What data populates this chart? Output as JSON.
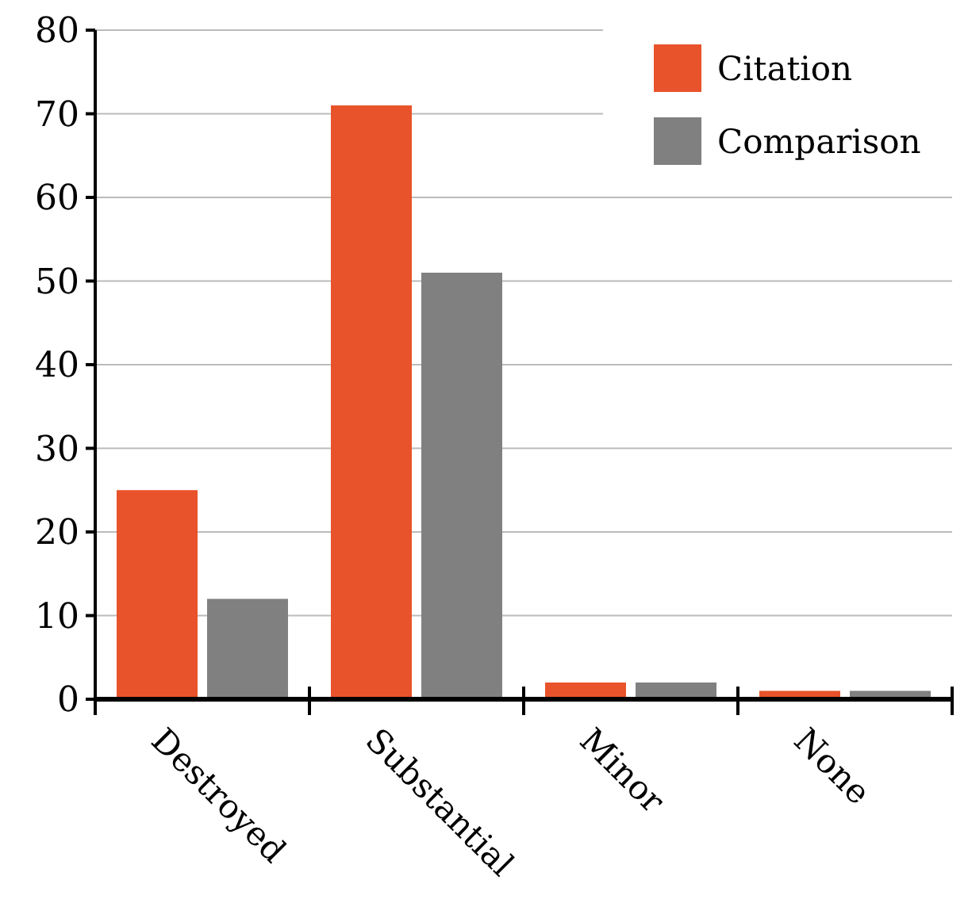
{
  "chart_data": {
    "type": "bar",
    "categories": [
      "Destroyed",
      "Substantial",
      "Minor",
      "None"
    ],
    "series": [
      {
        "name": "Citation",
        "color": "#e9532b",
        "values": [
          25,
          71,
          2,
          1
        ]
      },
      {
        "name": "Comparison",
        "color": "#808080",
        "values": [
          12,
          51,
          2,
          1
        ]
      }
    ],
    "ylim": [
      0,
      80
    ],
    "yticks": [
      0,
      10,
      20,
      30,
      40,
      50,
      60,
      70,
      80
    ],
    "grid": "y",
    "legend": "top right"
  }
}
